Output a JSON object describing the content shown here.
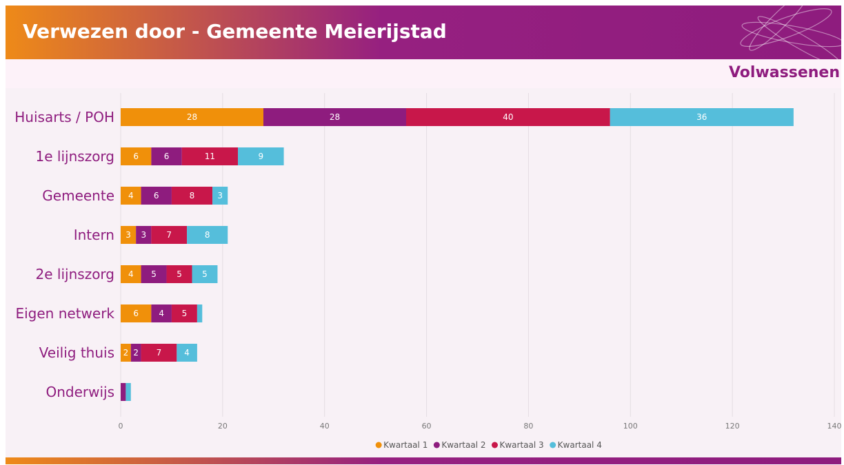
{
  "chart_data": {
    "type": "bar",
    "orientation": "horizontal",
    "stacked": true,
    "title": "Verwezen door - Gemeente Meierijstad",
    "subtitle": "Volwassenen",
    "categories": [
      "Huisarts / POH",
      "1e lijnszorg",
      "Gemeente",
      "Intern",
      "2e lijnszorg",
      "Eigen netwerk",
      "Veilig thuis",
      "Onderwijs"
    ],
    "series": [
      {
        "name": "Kwartaal 1",
        "color": "#f0900a",
        "values": [
          28,
          6,
          4,
          3,
          4,
          6,
          2,
          0
        ]
      },
      {
        "name": "Kwartaal 2",
        "color": "#8e1c7e",
        "values": [
          28,
          6,
          6,
          3,
          5,
          4,
          2,
          1
        ]
      },
      {
        "name": "Kwartaal 3",
        "color": "#c8174a",
        "values": [
          40,
          11,
          8,
          7,
          5,
          5,
          7,
          0
        ]
      },
      {
        "name": "Kwartaal 4",
        "color": "#55bedb",
        "values": [
          36,
          9,
          3,
          8,
          5,
          1,
          4,
          1
        ]
      }
    ],
    "xlim": [
      0,
      140
    ],
    "xticks": [
      0,
      20,
      40,
      60,
      80,
      100,
      120,
      140
    ],
    "grid": true,
    "legend": "bottom"
  }
}
